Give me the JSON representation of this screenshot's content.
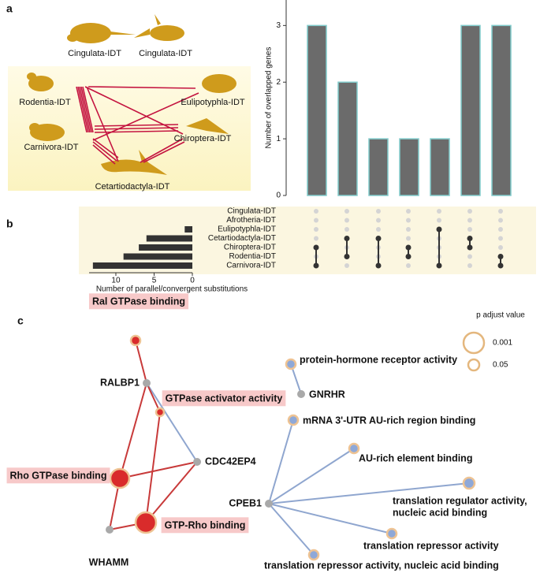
{
  "panel_labels": [
    "a",
    "b",
    "c"
  ],
  "species_a": [
    "Cingulata-IDT",
    "Cingulata-IDT",
    "Rodentia-IDT",
    "Eulipotyphla-IDT",
    "Carnivora-IDT",
    "Chiroptera-IDT",
    "Cetartiodactyla-IDT"
  ],
  "chart_data": [
    {
      "type": "bar",
      "ylabel": "Number of overlapped genes",
      "values": [
        3,
        2,
        1,
        1,
        1,
        3,
        3
      ],
      "color": "#6b6b6b",
      "edge_color": "#80cccc",
      "ylim": [
        0,
        3.45
      ],
      "yticks": [
        0,
        1,
        2,
        3
      ]
    },
    {
      "type": "hbar",
      "xlabel": "Number of parallel/convergent substitutions",
      "categories": [
        "Cingulata-IDT",
        "Afrotheria-IDT",
        "Eulipotyphla-IDT",
        "Cetartiodactyla-IDT",
        "Chiroptera-IDT",
        "Rodentia-IDT",
        "Carnivora-IDT"
      ],
      "values": [
        0,
        0,
        1,
        6,
        7,
        9,
        13
      ],
      "color": "#333333",
      "xlim": [
        0,
        13.5
      ],
      "xticks": [
        0,
        5,
        10
      ],
      "x_inverted": true
    }
  ],
  "upset": {
    "members": [
      [
        4,
        6
      ],
      [
        3,
        5
      ],
      [
        3,
        6
      ],
      [
        4,
        5
      ],
      [
        2,
        6
      ],
      [
        3,
        4
      ],
      [
        5,
        6
      ]
    ]
  },
  "network": {
    "legend_title": "p adjust value",
    "legend_values": [
      0.001,
      0.05
    ],
    "nodes": [
      {
        "label": "Ral GTPase binding"
      },
      {
        "label": "RALBP1"
      },
      {
        "label": "GTPase activator activity"
      },
      {
        "label": "CDC42EP4"
      },
      {
        "label": "Rho GTPase binding"
      },
      {
        "label": "GTP-Rho binding"
      },
      {
        "label": "WHAMM"
      },
      {
        "label": "protein-hormone receptor activity"
      },
      {
        "label": "GNRHR"
      },
      {
        "label": "mRNA 3'-UTR AU-rich region binding"
      },
      {
        "label": "AU-rich element binding"
      },
      {
        "label": "CPEB1"
      },
      {
        "label": [
          "translation regulator activity,",
          "nucleic acid binding"
        ]
      },
      {
        "label": "translation repressor activity"
      },
      {
        "label": "translation repressor activity, nucleic acid binding"
      }
    ]
  }
}
